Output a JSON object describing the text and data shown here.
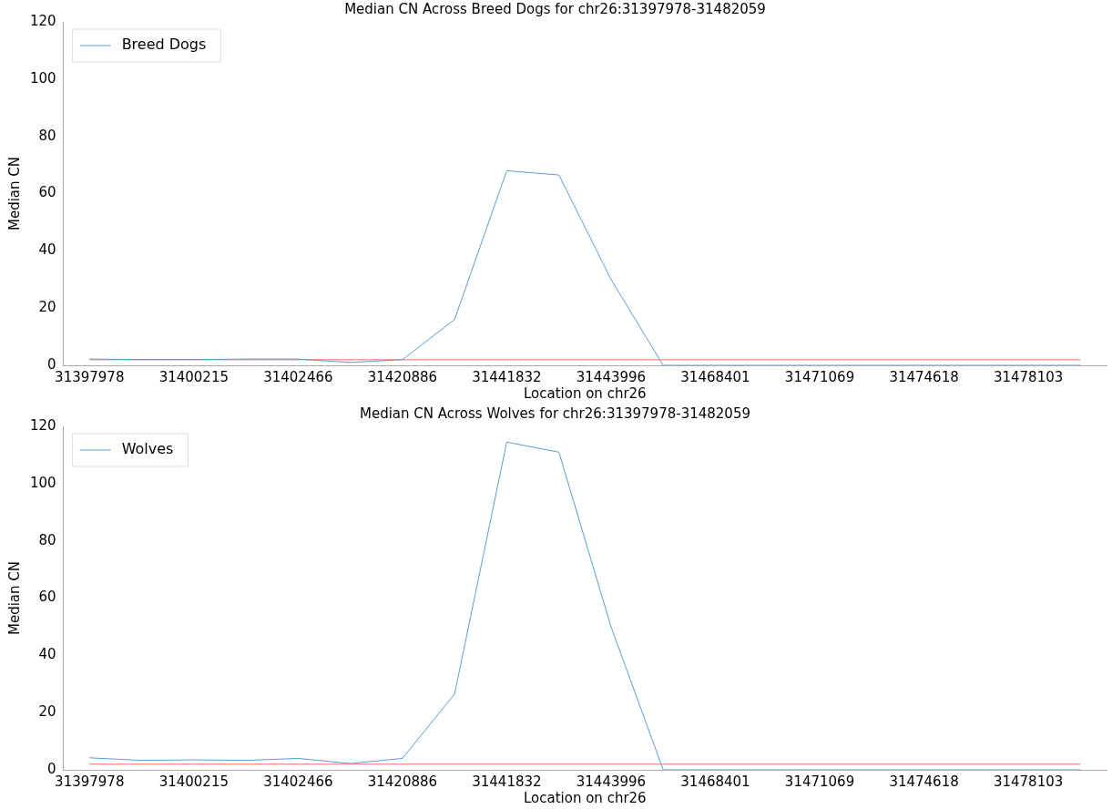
{
  "chart_data": [
    {
      "type": "line",
      "title": "Median CN Across Breed Dogs for chr26:31397978-31482059",
      "xlabel": "Location on chr26",
      "ylabel": "Median CN",
      "categories": [
        "31397978",
        null,
        "31400215",
        null,
        "31402466",
        null,
        "31420886",
        null,
        "31441832",
        null,
        "31443996",
        null,
        "31468401",
        null,
        "31471069",
        null,
        "31474618",
        null,
        "31478103",
        null
      ],
      "series": [
        {
          "name": "Breed Dogs",
          "color": "#5b9bd5",
          "values": [
            2.2,
            2,
            2,
            2.2,
            2.2,
            1,
            2,
            16,
            68,
            66.5,
            30,
            0,
            0,
            0,
            0,
            0,
            0,
            0,
            0,
            0
          ]
        }
      ],
      "ylim": [
        0,
        120
      ],
      "yticks": [
        0,
        20,
        40,
        60,
        80,
        100,
        120
      ],
      "ref_lines": [
        {
          "axis": "y",
          "value": 2,
          "color": "#ff9999"
        }
      ],
      "legend": "top left",
      "grid": false,
      "marker": "none",
      "line_style": "solid"
    },
    {
      "type": "line",
      "title": "Median CN Across Wolves for chr26:31397978-31482059",
      "xlabel": "Location on chr26",
      "ylabel": "Median CN",
      "categories": [
        "31397978",
        null,
        "31400215",
        null,
        "31402466",
        null,
        "31420886",
        null,
        "31441832",
        null,
        "31443996",
        null,
        "31468401",
        null,
        "31471069",
        null,
        "31474618",
        null,
        "31478103",
        null
      ],
      "series": [
        {
          "name": "Wolves",
          "color": "#5b9bd5",
          "values": [
            4.2,
            3.3,
            3.5,
            3.3,
            4,
            2.2,
            4,
            26.5,
            114.5,
            111,
            50,
            0,
            0,
            0,
            0,
            0,
            0,
            0,
            0,
            0
          ]
        }
      ],
      "ylim": [
        0,
        120
      ],
      "yticks": [
        0,
        20,
        40,
        60,
        80,
        100,
        120
      ],
      "ref_lines": [
        {
          "axis": "y",
          "value": 2,
          "color": "#ff9999"
        }
      ],
      "legend": "top left",
      "grid": false,
      "marker": "none",
      "line_style": "solid"
    }
  ]
}
